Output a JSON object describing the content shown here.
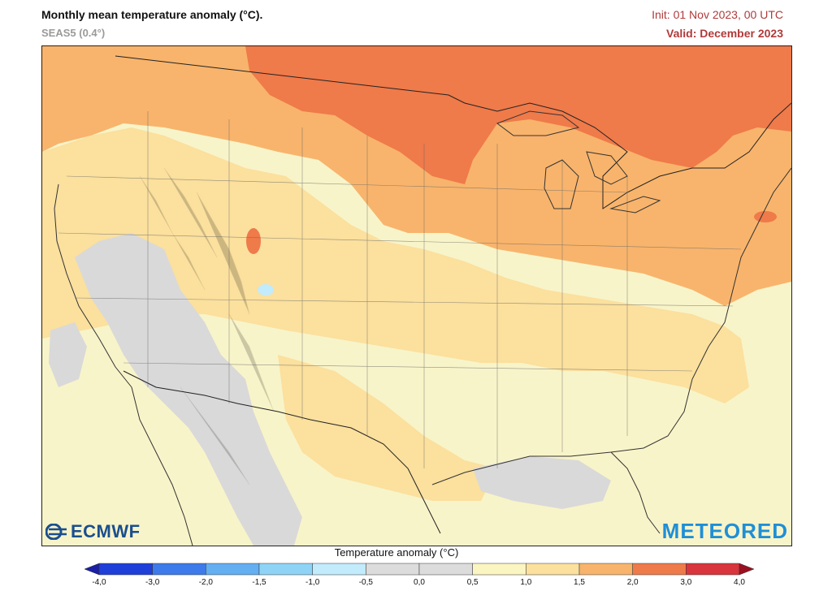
{
  "header": {
    "title": "Monthly mean temperature anomaly (°C).",
    "model": "SEAS5 (0.4°)",
    "init": "Init: 01 Nov 2023, 00 UTC",
    "valid": "Valid: December 2023"
  },
  "logos": {
    "left": "ECMWF",
    "right": "METEORED"
  },
  "legend": {
    "title": "Temperature anomaly (°C)",
    "ticks": [
      "-4,0",
      "-3,0",
      "-2,0",
      "-1,5",
      "-1,0",
      "-0,5",
      "0,0",
      "0,5",
      "1,0",
      "1,5",
      "2,0",
      "3,0",
      "4,0"
    ],
    "colors": [
      "#1f3fd9",
      "#3d7bea",
      "#64aef2",
      "#8fd4f6",
      "#c2ebfb",
      "#dcdcdc",
      "#dcdcdc",
      "#fbf5c2",
      "#fbe09e",
      "#f8b46c",
      "#ef7a4a",
      "#d8353c"
    ],
    "low_color": "#1b1ea6",
    "high_color": "#9b1020"
  },
  "map": {
    "region": "Contiguous United States, northern Mexico and southern Canada",
    "colors": {
      "ocean_low": "#f8f4c9",
      "weak_warm": "#fbe09e",
      "warm": "#f8b46c",
      "strong_warm": "#ef7a4a",
      "very_warm": "#d8353c",
      "neutral": "#d9d9d9",
      "cool": "#c2ebfb"
    }
  }
}
